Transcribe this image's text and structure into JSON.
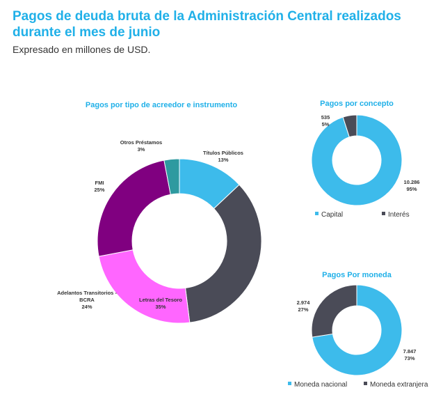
{
  "header": {
    "title": "Pagos de deuda bruta de la Administración Central realizados durante el mes de junio",
    "subtitle": "Expresado en millones de USD."
  },
  "chart_data": [
    {
      "type": "donut",
      "title": "Pagos por tipo de acreedor e instrumento",
      "categories": [
        "Títulos Públicos",
        "Letras del Tesoro",
        "Adelantos Transitorios - BCRA",
        "FMI",
        "Otros Préstamos"
      ],
      "values": [
        13,
        35,
        24,
        25,
        3
      ],
      "labels": [
        {
          "lines": [
            "Títulos Públicos",
            "13%"
          ]
        },
        {
          "lines": [
            "Letras del Tesoro",
            "35%"
          ]
        },
        {
          "lines": [
            "Adelantos Transitorios -",
            "BCRA",
            "24%"
          ]
        },
        {
          "lines": [
            "FMI",
            "25%"
          ]
        },
        {
          "lines": [
            "Otros Préstamos",
            "3%"
          ]
        }
      ],
      "colors": [
        "#3dbbeb",
        "#4a4b57",
        "#ff66ff",
        "#800080",
        "#2e9aa0"
      ]
    },
    {
      "type": "donut",
      "title": "Pagos por concepto",
      "categories": [
        "Capital",
        "Interés"
      ],
      "values": [
        10286,
        535
      ],
      "labels": [
        {
          "lines": [
            "10.286",
            "95%"
          ]
        },
        {
          "lines": [
            "535",
            "5%"
          ]
        }
      ],
      "colors": [
        "#3dbbeb",
        "#4a4b57"
      ],
      "legend": [
        "Capital",
        "Interés"
      ]
    },
    {
      "type": "donut",
      "title": "Pagos Por moneda",
      "categories": [
        "Moneda nacional",
        "Moneda extranjera"
      ],
      "values": [
        7847,
        2974
      ],
      "labels": [
        {
          "lines": [
            "7.847",
            "73%"
          ]
        },
        {
          "lines": [
            "2.974",
            "27%"
          ]
        }
      ],
      "colors": [
        "#3dbbeb",
        "#4a4b57"
      ],
      "legend": [
        "Moneda nacional",
        "Moneda extranjera"
      ]
    }
  ]
}
